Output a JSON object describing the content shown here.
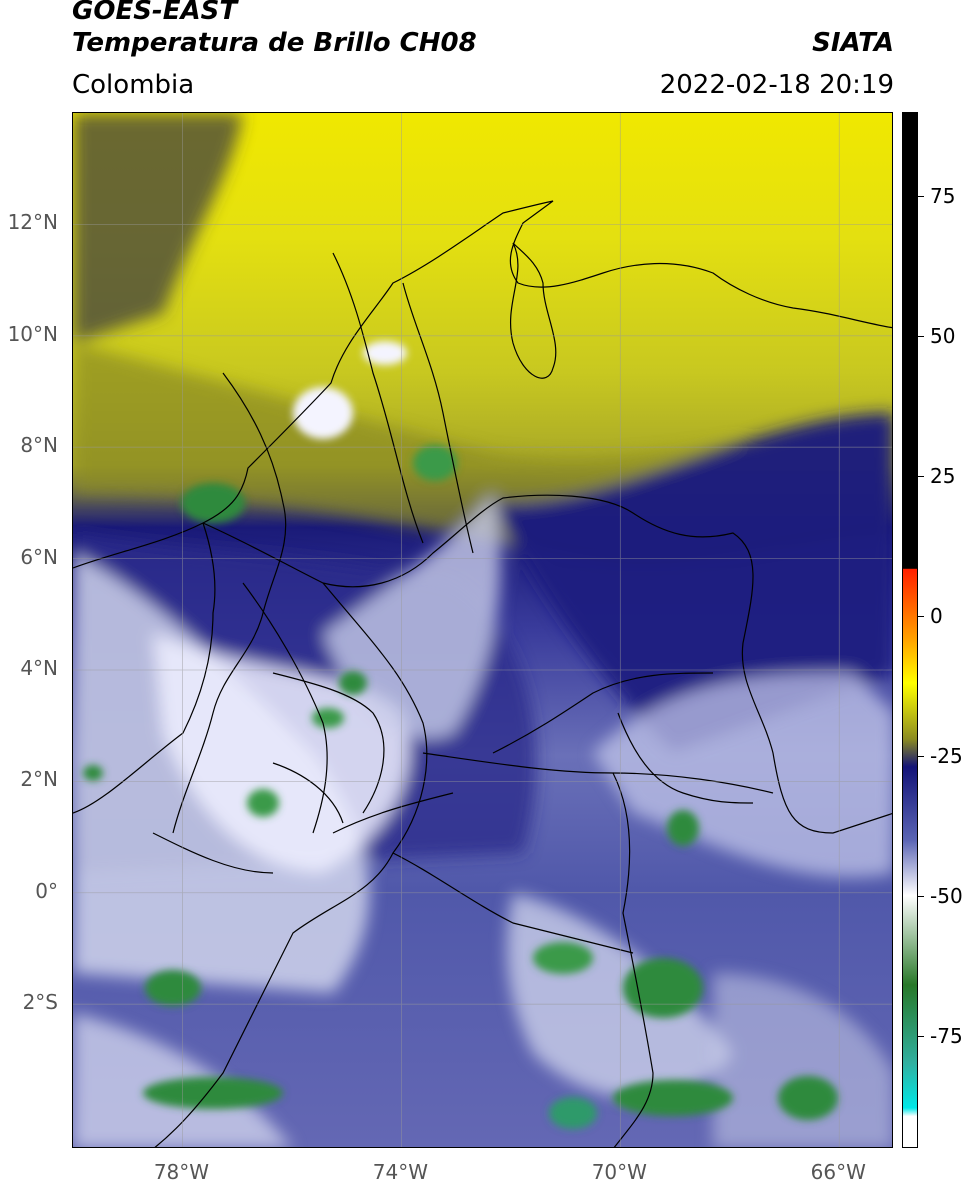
{
  "header": {
    "title_line1": "GOES-EAST",
    "title_line2": "Temperatura de Brillo CH08",
    "organization": "SIATA",
    "region": "Colombia",
    "timestamp": "2022-02-18 20:19"
  },
  "map": {
    "lat_labels": [
      {
        "text": "12°N",
        "value": 12
      },
      {
        "text": "10°N",
        "value": 10
      },
      {
        "text": "8°N",
        "value": 8
      },
      {
        "text": "6°N",
        "value": 6
      },
      {
        "text": "4°N",
        "value": 4
      },
      {
        "text": "2°N",
        "value": 2
      },
      {
        "text": "0°",
        "value": 0
      },
      {
        "text": "2°S",
        "value": -2
      }
    ],
    "lon_labels": [
      {
        "text": "78°W",
        "value": -78
      },
      {
        "text": "74°W",
        "value": -74
      },
      {
        "text": "70°W",
        "value": -70
      },
      {
        "text": "66°W",
        "value": -66
      }
    ],
    "lat_range": [
      -4.6,
      14.0
    ],
    "lon_range": [
      -80.0,
      -65.0
    ],
    "gridlines": true
  },
  "colorbar": {
    "range": [
      -95,
      90
    ],
    "ticks": [
      {
        "text": "75",
        "value": 75
      },
      {
        "text": "50",
        "value": 50
      },
      {
        "text": "25",
        "value": 25
      },
      {
        "text": "0",
        "value": 0
      },
      {
        "text": "-25",
        "value": -25
      },
      {
        "text": "-50",
        "value": -50
      },
      {
        "text": "-75",
        "value": -75
      }
    ],
    "colors": {
      "warm_black": "#000000",
      "red": "#ff2000",
      "orange": "#ffa000",
      "yellow": "#ffff00",
      "olive": "#8c8c20",
      "dark_blue": "#141478",
      "blue": "#5a64b4",
      "white": "#ffffff",
      "green": "#287828",
      "teal": "#30b0a0",
      "cyan": "#00e8e8"
    }
  }
}
